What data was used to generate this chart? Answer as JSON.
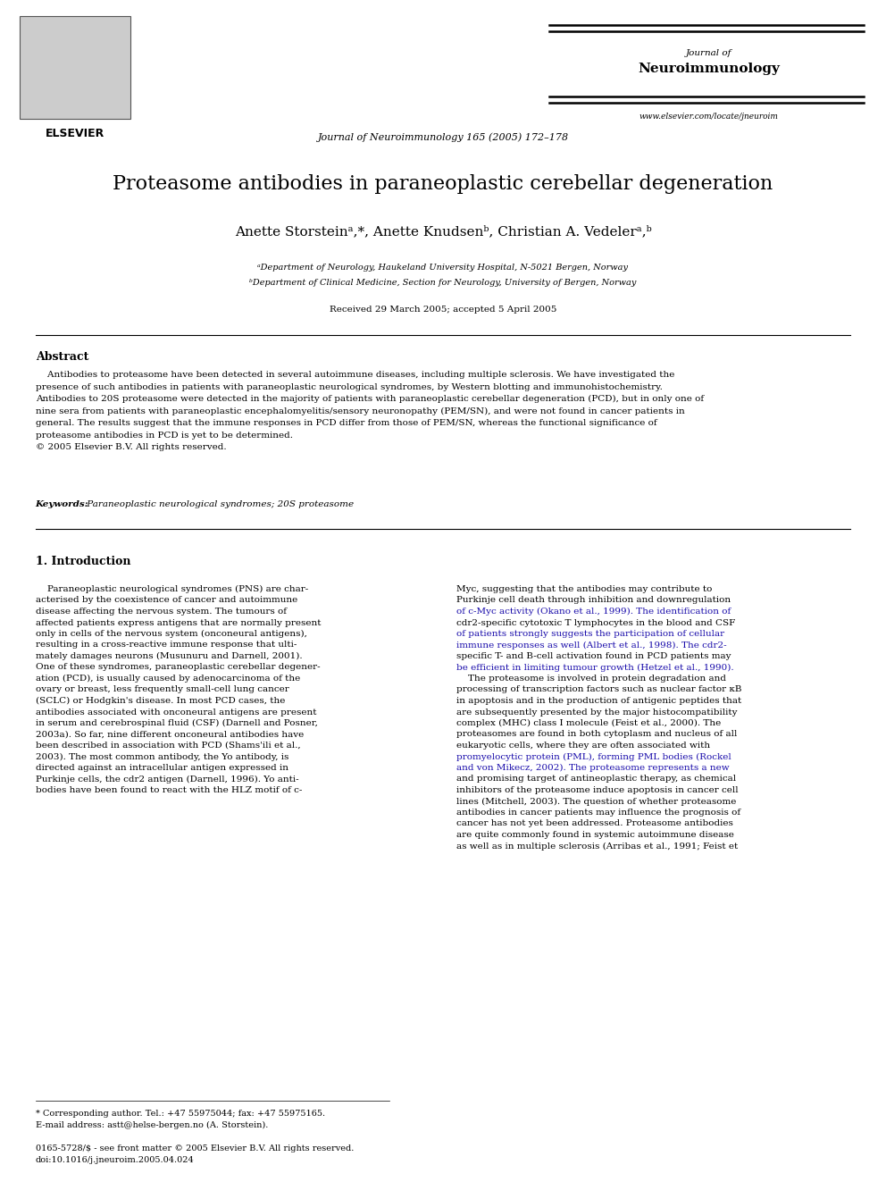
{
  "bg_color": "#ffffff",
  "page_width": 9.92,
  "page_height": 13.23,
  "header": {
    "journal_line1": "Journal of",
    "journal_line2": "Neuroimmunology",
    "center_text": "Journal of Neuroimmunology 165 (2005) 172–178",
    "website": "www.elsevier.com/locate/jneuroim",
    "elsevier_label": "ELSEVIER"
  },
  "title": "Proteasome antibodies in paraneoplastic cerebellar degeneration",
  "authors": "Anette Storsteinᵃ,*, Anette Knudsenᵇ, Christian A. Vedelerᵃ,ᵇ",
  "affil1": "ᵃDepartment of Neurology, Haukeland University Hospital, N-5021 Bergen, Norway",
  "affil2": "ᵇDepartment of Clinical Medicine, Section for Neurology, University of Bergen, Norway",
  "received": "Received 29 March 2005; accepted 5 April 2005",
  "abstract_heading": "Abstract",
  "abstract_lines": [
    "    Antibodies to proteasome have been detected in several autoimmune diseases, including multiple sclerosis. We have investigated the",
    "presence of such antibodies in patients with paraneoplastic neurological syndromes, by Western blotting and immunohistochemistry.",
    "Antibodies to 20S proteasome were detected in the majority of patients with paraneoplastic cerebellar degeneration (PCD), but in only one of",
    "nine sera from patients with paraneoplastic encephalomyelitis/sensory neuronopathy (PEM/SN), and were not found in cancer patients in",
    "general. The results suggest that the immune responses in PCD differ from those of PEM/SN, whereas the functional significance of",
    "proteasome antibodies in PCD is yet to be determined.",
    "© 2005 Elsevier B.V. All rights reserved."
  ],
  "keywords_label": "Keywords:",
  "keywords_text": " Paraneoplastic neurological syndromes; 20S proteasome",
  "section1_heading": "1. Introduction",
  "intro_left_lines": [
    "    Paraneoplastic neurological syndromes (PNS) are char-",
    "acterised by the coexistence of cancer and autoimmune",
    "disease affecting the nervous system. The tumours of",
    "affected patients express antigens that are normally present",
    "only in cells of the nervous system (onconeural antigens),",
    "resulting in a cross-reactive immune response that ulti-",
    "mately damages neurons (Musunuru and Darnell, 2001).",
    "One of these syndromes, paraneoplastic cerebellar degener-",
    "ation (PCD), is usually caused by adenocarcinoma of the",
    "ovary or breast, less frequently small-cell lung cancer",
    "(SCLC) or Hodgkin's disease. In most PCD cases, the",
    "antibodies associated with onconeural antigens are present",
    "in serum and cerebrospinal fluid (CSF) (Darnell and Posner,",
    "2003a). So far, nine different onconeural antibodies have",
    "been described in association with PCD (Shams'ili et al.,",
    "2003). The most common antibody, the Yo antibody, is",
    "directed against an intracellular antigen expressed in",
    "Purkinje cells, the cdr2 antigen (Darnell, 1996). Yo anti-",
    "bodies have been found to react with the HLZ motif of c-"
  ],
  "intro_right_lines": [
    "Myc, suggesting that the antibodies may contribute to",
    "Purkinje cell death through inhibition and downregulation",
    "of c-Myc activity (Okano et al., 1999). The identification of",
    "cdr2-specific cytotoxic T lymphocytes in the blood and CSF",
    "of patients strongly suggests the participation of cellular",
    "immune responses as well (Albert et al., 1998). The cdr2-",
    "specific T- and B-cell activation found in PCD patients may",
    "be efficient in limiting tumour growth (Hetzel et al., 1990).",
    "    The proteasome is involved in protein degradation and",
    "processing of transcription factors such as nuclear factor κB",
    "in apoptosis and in the production of antigenic peptides that",
    "are subsequently presented by the major histocompatibility",
    "complex (MHC) class I molecule (Feist et al., 2000). The",
    "proteasomes are found in both cytoplasm and nucleus of all",
    "eukaryotic cells, where they are often associated with",
    "promyelocytic protein (PML), forming PML bodies (Rockel",
    "and von Mikecz, 2002). The proteasome represents a new",
    "and promising target of antineoplastic therapy, as chemical",
    "inhibitors of the proteasome induce apoptosis in cancer cell",
    "lines (Mitchell, 2003). The question of whether proteasome",
    "antibodies in cancer patients may influence the prognosis of",
    "cancer has not yet been addressed. Proteasome antibodies",
    "are quite commonly found in systemic autoimmune disease",
    "as well as in multiple sclerosis (Arribas et al., 1991; Feist et"
  ],
  "intro_right_link_lines": [
    2,
    4,
    5,
    7,
    15,
    16,
    29
  ],
  "footnote1": "* Corresponding author. Tel.: +47 55975044; fax: +47 55975165.",
  "footnote2": "E-mail address: astt@helse-bergen.no (A. Storstein).",
  "footnote3": "0165-5728/$ - see front matter © 2005 Elsevier B.V. All rights reserved.",
  "footnote4": "doi:10.1016/j.jneuroim.2005.04.024",
  "text_color": "#000000",
  "link_color": "#1a0dab",
  "title_font_size": 16,
  "author_font_size": 11,
  "body_font_size": 7.5,
  "small_font_size": 7,
  "heading_font_size": 9
}
